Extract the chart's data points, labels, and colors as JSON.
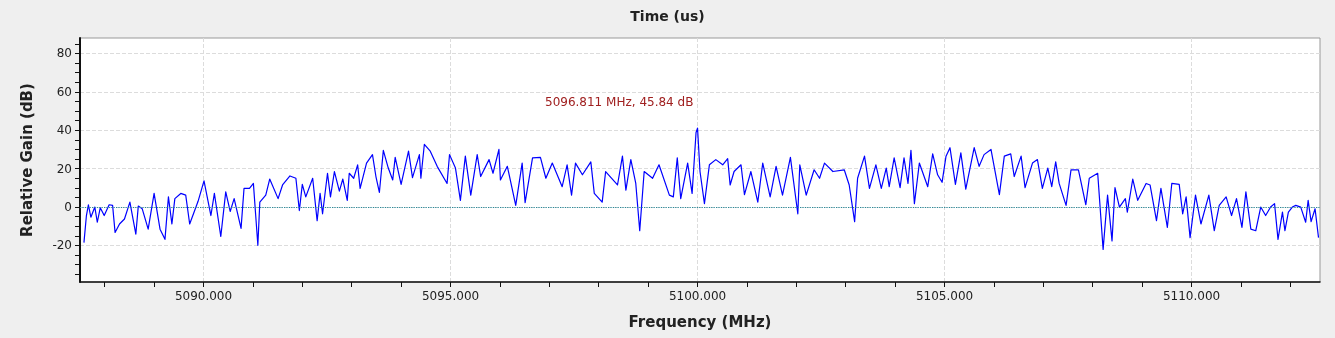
{
  "chart_data": {
    "type": "line",
    "title": "Time (us)",
    "xlabel": "Frequency (MHz)",
    "ylabel": "Relative Gain (dB)",
    "annotations": [
      "5096.811 MHz, 45.84 dB"
    ],
    "xlim": [
      5087.5,
      5112.6
    ],
    "ylim": [
      -39,
      88
    ],
    "xticks": [
      {
        "value": 5088,
        "label": null
      },
      {
        "value": 5089,
        "label": null
      },
      {
        "value": 5090,
        "label": "5090.000"
      },
      {
        "value": 5091,
        "label": null
      },
      {
        "value": 5092,
        "label": null
      },
      {
        "value": 5093,
        "label": null
      },
      {
        "value": 5094,
        "label": null
      },
      {
        "value": 5095,
        "label": "5095.000"
      },
      {
        "value": 5096,
        "label": null
      },
      {
        "value": 5097,
        "label": null
      },
      {
        "value": 5098,
        "label": null
      },
      {
        "value": 5099,
        "label": null
      },
      {
        "value": 5100,
        "label": "5100.000"
      },
      {
        "value": 5101,
        "label": null
      },
      {
        "value": 5102,
        "label": null
      },
      {
        "value": 5103,
        "label": null
      },
      {
        "value": 5104,
        "label": null
      },
      {
        "value": 5105,
        "label": "5105.000"
      },
      {
        "value": 5106,
        "label": null
      },
      {
        "value": 5107,
        "label": null
      },
      {
        "value": 5108,
        "label": null
      },
      {
        "value": 5109,
        "label": null
      },
      {
        "value": 5110,
        "label": "5110.000"
      },
      {
        "value": 5111,
        "label": null
      },
      {
        "value": 5112,
        "label": null
      }
    ],
    "yticks": [
      {
        "value": -35,
        "label": null
      },
      {
        "value": -30,
        "label": null
      },
      {
        "value": -25,
        "label": null
      },
      -20,
      {
        "value": -15,
        "label": null
      },
      {
        "value": -10,
        "label": null
      },
      {
        "value": -5,
        "label": null
      },
      0,
      {
        "value": 5,
        "label": null
      },
      {
        "value": 10,
        "label": null
      },
      {
        "value": 15,
        "label": null
      },
      20,
      {
        "value": 25,
        "label": null
      },
      {
        "value": 30,
        "label": null
      },
      {
        "value": 35,
        "label": null
      },
      40,
      {
        "value": 45,
        "label": null
      },
      {
        "value": 50,
        "label": null
      },
      {
        "value": 55,
        "label": null
      },
      60,
      {
        "value": 65,
        "label": null
      },
      {
        "value": 70,
        "label": null
      },
      {
        "value": 75,
        "label": null
      },
      80,
      {
        "value": 85,
        "label": null
      }
    ],
    "grid": true,
    "marker": "none",
    "line_style": "solid",
    "ref_lines": [
      {
        "axis": "y",
        "value": 0,
        "color": "#2a8a9a",
        "line_style": "dotted"
      }
    ],
    "series": [
      {
        "color": "#0000ff",
        "x": [
          5087.58,
          5087.63,
          5087.67,
          5087.72,
          5087.8,
          5087.85,
          5087.91,
          5087.99,
          5088.09,
          5088.16,
          5088.21,
          5088.3,
          5088.4,
          5088.51,
          5088.63,
          5088.68,
          5088.76,
          5088.88,
          5089.0,
          5089.12,
          5089.22,
          5089.29,
          5089.36,
          5089.42,
          5089.54,
          5089.64,
          5089.72,
          5089.81,
          5089.89,
          5090.01,
          5090.15,
          5090.22,
          5090.35,
          5090.45,
          5090.54,
          5090.62,
          5090.76,
          5090.82,
          5090.93,
          5091.01,
          5091.1,
          5091.14,
          5091.26,
          5091.34,
          5091.51,
          5091.6,
          5091.75,
          5091.87,
          5091.94,
          5092.0,
          5092.07,
          5092.21,
          5092.3,
          5092.36,
          5092.41,
          5092.51,
          5092.57,
          5092.65,
          5092.75,
          5092.82,
          5092.91,
          5092.95,
          5093.04,
          5093.12,
          5093.17,
          5093.3,
          5093.42,
          5093.49,
          5093.56,
          5093.64,
          5093.74,
          5093.83,
          5093.88,
          5094.0,
          5094.15,
          5094.23,
          5094.37,
          5094.4,
          5094.47,
          5094.59,
          5094.73,
          5094.93,
          5094.98,
          5095.1,
          5095.2,
          5095.3,
          5095.41,
          5095.54,
          5095.61,
          5095.78,
          5095.86,
          5095.98,
          5096.01,
          5096.15,
          5096.32,
          5096.45,
          5096.51,
          5096.66,
          5096.82,
          5096.93,
          5097.06,
          5097.26,
          5097.36,
          5097.45,
          5097.53,
          5097.67,
          5097.84,
          5097.91,
          5098.07,
          5098.14,
          5098.38,
          5098.48,
          5098.55,
          5098.65,
          5098.75,
          5098.83,
          5098.92,
          5099.09,
          5099.22,
          5099.43,
          5099.51,
          5099.59,
          5099.66,
          5099.8,
          5099.89,
          5099.97,
          5100.0,
          5100.05,
          5100.14,
          5100.24,
          5100.37,
          5100.51,
          5100.61,
          5100.66,
          5100.74,
          5100.88,
          5100.95,
          5101.08,
          5101.22,
          5101.32,
          5101.47,
          5101.59,
          5101.72,
          5101.88,
          5102.03,
          5102.07,
          5102.2,
          5102.36,
          5102.47,
          5102.57,
          5102.74,
          5102.97,
          5103.07,
          5103.18,
          5103.24,
          5103.38,
          5103.48,
          5103.61,
          5103.72,
          5103.82,
          5103.88,
          5103.98,
          5104.1,
          5104.18,
          5104.26,
          5104.32,
          5104.39,
          5104.49,
          5104.66,
          5104.76,
          5104.86,
          5104.95,
          5105.03,
          5105.11,
          5105.22,
          5105.33,
          5105.43,
          5105.6,
          5105.7,
          5105.8,
          5105.94,
          5106.11,
          5106.21,
          5106.34,
          5106.41,
          5106.55,
          5106.63,
          5106.78,
          5106.88,
          5106.98,
          5107.09,
          5107.17,
          5107.25,
          5107.32,
          5107.46,
          5107.56,
          5107.71,
          5107.86,
          5107.93,
          5108.1,
          5108.21,
          5108.3,
          5108.39,
          5108.45,
          5108.54,
          5108.66,
          5108.7,
          5108.81,
          5108.91,
          5109.08,
          5109.16,
          5109.29,
          5109.38,
          5109.51,
          5109.6,
          5109.75,
          5109.82,
          5109.89,
          5109.97,
          5110.08,
          5110.19,
          5110.35,
          5110.46,
          5110.56,
          5110.7,
          5110.81,
          5110.91,
          5111.02,
          5111.1,
          5111.2,
          5111.3,
          5111.4,
          5111.5,
          5111.6,
          5111.68,
          5111.75,
          5111.84,
          5111.89,
          5111.96,
          5112.04,
          5112.11,
          5112.21,
          5112.31,
          5112.36,
          5112.42,
          5112.5,
          5112.57
        ],
        "values": [
          -18.5,
          -4.4,
          1.2,
          -5.3,
          0,
          -7.9,
          -0.4,
          -4.4,
          1.2,
          0.9,
          -13.2,
          -8.8,
          -6.2,
          2.6,
          -14.1,
          0.5,
          -0.9,
          -11.5,
          7.1,
          -11.5,
          -16.8,
          5.3,
          -8.8,
          4.4,
          7.1,
          6.2,
          -8.8,
          -2.6,
          3.0,
          13.6,
          -4.4,
          7.1,
          -15.3,
          7.9,
          -2.3,
          4.4,
          -11.1,
          9.7,
          9.7,
          12.3,
          -19.9,
          2.6,
          6.2,
          14.6,
          4.4,
          11.5,
          16.2,
          15.0,
          -1.8,
          11.8,
          5.3,
          15.0,
          -7.1,
          7.1,
          -3.5,
          17.6,
          5.3,
          18.5,
          8.3,
          14.6,
          3.5,
          17.6,
          15.0,
          22.0,
          9.7,
          22.9,
          27.3,
          15.9,
          7.6,
          29.5,
          20.3,
          14.1,
          25.9,
          11.8,
          29.1,
          15.3,
          27.3,
          15.0,
          32.6,
          29.1,
          21.2,
          12.3,
          27.3,
          20.3,
          3.5,
          26.5,
          6.2,
          27.3,
          15.9,
          24.7,
          17.6,
          30.0,
          14.1,
          21.2,
          0.9,
          22.9,
          2.3,
          25.6,
          25.9,
          15.0,
          22.9,
          10.6,
          22.0,
          6.2,
          22.9,
          16.8,
          23.5,
          7.1,
          2.6,
          18.5,
          11.5,
          26.5,
          8.8,
          24.7,
          12.3,
          -12.3,
          18.5,
          15.0,
          22.0,
          6.2,
          5.3,
          25.6,
          4.4,
          22.9,
          7.1,
          38.8,
          41.1,
          18.5,
          1.8,
          22.0,
          24.7,
          22.0,
          25.2,
          11.5,
          18.5,
          22.0,
          6.5,
          18.5,
          2.6,
          22.9,
          5.3,
          21.2,
          6.2,
          25.9,
          -3.5,
          22.0,
          6.2,
          19.4,
          15.0,
          22.9,
          18.5,
          19.4,
          11.5,
          -7.6,
          15.0,
          26.5,
          9.7,
          22.0,
          9.7,
          20.3,
          10.6,
          25.6,
          10.1,
          25.6,
          12.3,
          29.5,
          1.8,
          22.9,
          10.6,
          27.7,
          16.8,
          12.9,
          26.5,
          30.9,
          11.8,
          28.2,
          9.3,
          30.9,
          21.2,
          27.3,
          30.0,
          6.5,
          26.5,
          27.7,
          15.9,
          26.5,
          10.1,
          22.9,
          24.7,
          9.7,
          20.3,
          10.6,
          23.5,
          12.3,
          0.9,
          19.4,
          19.4,
          1.2,
          15.0,
          17.6,
          -22.0,
          6.2,
          -17.6,
          10.1,
          0,
          4.4,
          -2.6,
          14.6,
          3.5,
          12.3,
          11.5,
          -7.1,
          9.7,
          -10.6,
          12.3,
          11.8,
          -3.5,
          5.3,
          -15.9,
          6.2,
          -8.8,
          6.2,
          -12.3,
          0.9,
          5.3,
          -4.4,
          4.4,
          -10.6,
          7.9,
          -11.5,
          -12.3,
          0,
          -4.4,
          0,
          1.8,
          -16.8,
          -2.6,
          -12.3,
          -2.6,
          0,
          0.9,
          0,
          -7.9,
          3.5,
          -7.6,
          -0.9,
          -15.9
        ]
      }
    ]
  }
}
